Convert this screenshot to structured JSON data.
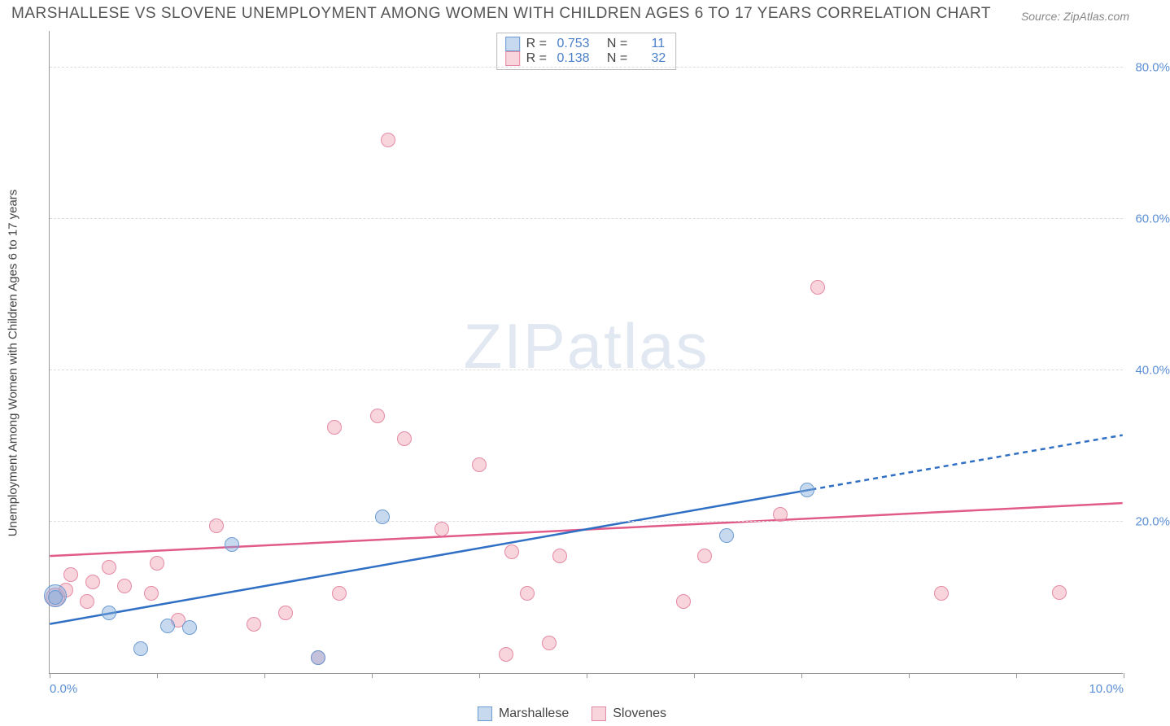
{
  "title": "MARSHALLESE VS SLOVENE UNEMPLOYMENT AMONG WOMEN WITH CHILDREN AGES 6 TO 17 YEARS CORRELATION CHART",
  "source_label": "Source: ZipAtlas.com",
  "y_axis_title": "Unemployment Among Women with Children Ages 6 to 17 years",
  "watermark": {
    "part1": "ZIP",
    "part2": "atlas"
  },
  "colors": {
    "series_a_fill": "rgba(130,170,220,0.45)",
    "series_a_stroke": "#6b9bd1",
    "series_b_fill": "rgba(240,160,180,0.45)",
    "series_b_stroke": "#e48aa4",
    "line_a": "#2f6fc4",
    "line_b": "#e05a8a",
    "grid": "#dddddd",
    "accent_text": "#5b8fd6",
    "axis": "#999999"
  },
  "chart": {
    "type": "scatter",
    "xlim": [
      0,
      10
    ],
    "ylim": [
      0,
      85
    ],
    "x_ticks": [
      0,
      5,
      10
    ],
    "x_tick_labels": [
      "0.0%",
      "",
      "10.0%"
    ],
    "y_gridlines": [
      20,
      40,
      60,
      80
    ],
    "y_tick_labels": [
      "20.0%",
      "40.0%",
      "60.0%",
      "80.0%"
    ],
    "marker_radius": 9,
    "marker_stroke_width": 1.5
  },
  "legend_stats": [
    {
      "series": "a",
      "r": "0.753",
      "n": "11"
    },
    {
      "series": "b",
      "r": "0.138",
      "n": "32"
    }
  ],
  "bottom_legend": [
    {
      "series": "a",
      "label": "Marshallese"
    },
    {
      "series": "b",
      "label": "Slovenes"
    }
  ],
  "series_a": {
    "points": [
      [
        0.05,
        10.2,
        14
      ],
      [
        0.05,
        10.0,
        9
      ],
      [
        0.55,
        8.0
      ],
      [
        0.85,
        3.2
      ],
      [
        1.1,
        6.2
      ],
      [
        1.3,
        6.0
      ],
      [
        1.7,
        17.0
      ],
      [
        2.5,
        2.0
      ],
      [
        3.1,
        20.7
      ],
      [
        6.3,
        18.2
      ],
      [
        7.05,
        24.2
      ]
    ],
    "trend": {
      "x1": 0.0,
      "y1": 6.5,
      "x2": 7.1,
      "y2": 24.3,
      "ext_x2": 10.0,
      "ext_y2": 31.5
    }
  },
  "series_b": {
    "points": [
      [
        0.05,
        10.0,
        12
      ],
      [
        0.2,
        13.0
      ],
      [
        0.4,
        12.0
      ],
      [
        0.55,
        14.0
      ],
      [
        0.7,
        11.5
      ],
      [
        0.95,
        10.5
      ],
      [
        1.0,
        14.5
      ],
      [
        1.2,
        7.0
      ],
      [
        1.55,
        19.5
      ],
      [
        1.9,
        6.5
      ],
      [
        2.2,
        8.0
      ],
      [
        2.5,
        2.0
      ],
      [
        2.65,
        32.5
      ],
      [
        2.7,
        10.5
      ],
      [
        3.05,
        34.0
      ],
      [
        3.15,
        70.5
      ],
      [
        3.3,
        31.0
      ],
      [
        3.65,
        19.0
      ],
      [
        4.0,
        27.5
      ],
      [
        4.25,
        2.5
      ],
      [
        4.3,
        16.0
      ],
      [
        4.45,
        10.5
      ],
      [
        4.65,
        4.0
      ],
      [
        4.75,
        15.5
      ],
      [
        5.9,
        9.5
      ],
      [
        6.1,
        15.5
      ],
      [
        6.8,
        21.0
      ],
      [
        7.15,
        51.0
      ],
      [
        8.3,
        10.5
      ],
      [
        9.4,
        10.7
      ],
      [
        0.35,
        9.5
      ],
      [
        0.15,
        11.0
      ]
    ],
    "trend": {
      "x1": 0.0,
      "y1": 15.5,
      "x2": 10.0,
      "y2": 22.5
    }
  }
}
